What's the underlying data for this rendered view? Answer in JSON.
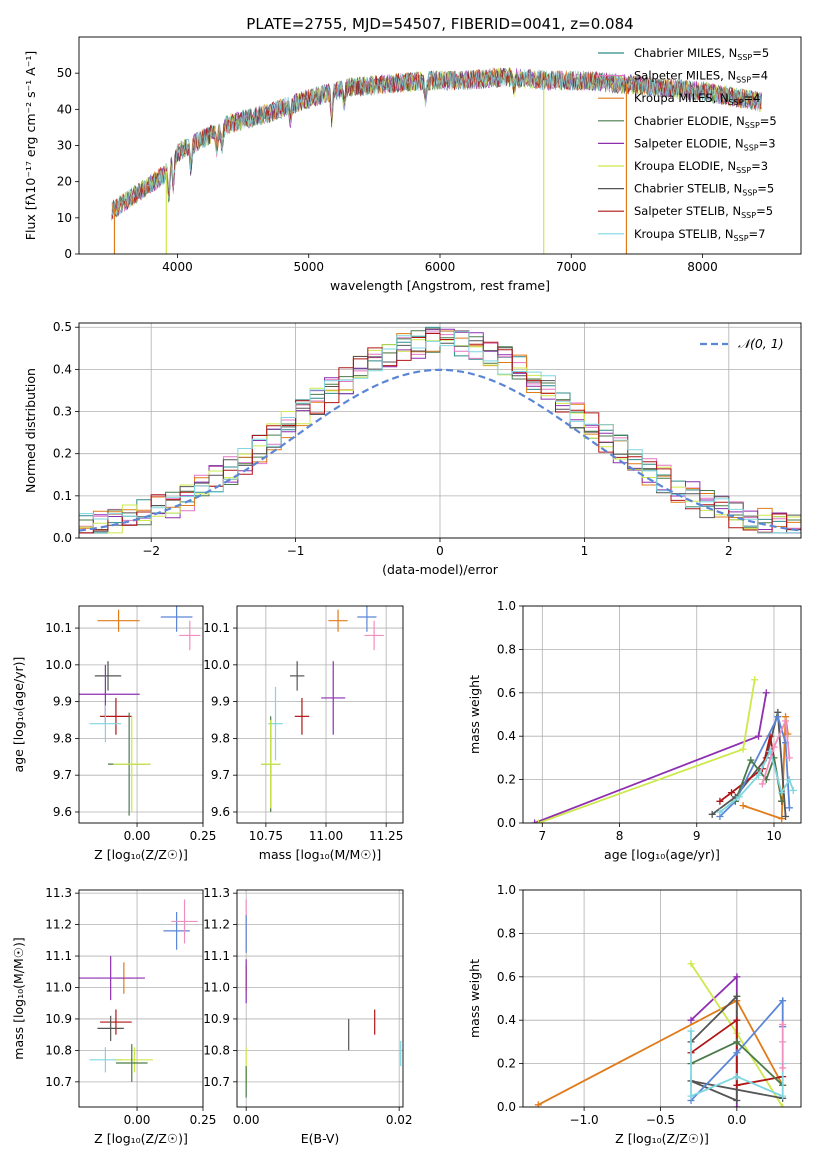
{
  "figure_title": "PLATE=2755, MJD=54507, FIBERID=0041, z=0.084",
  "series": [
    {
      "name": "Chabrier MILES, N",
      "sub": "SSP",
      "suffix": "=5",
      "color": "#2c8c8c"
    },
    {
      "name": "Salpeter MILES, N",
      "sub": "SSP",
      "suffix": "=4",
      "color": "#e377c2"
    },
    {
      "name": "Kroupa MILES, N",
      "sub": "SSP",
      "suffix": "=4",
      "color": "#e07b1a"
    },
    {
      "name": "Chabrier ELODIE, N",
      "sub": "SSP",
      "suffix": "=5",
      "color": "#4a7a4a"
    },
    {
      "name": "Salpeter ELODIE, N",
      "sub": "SSP",
      "suffix": "=3",
      "color": "#8e2fb0"
    },
    {
      "name": "Kroupa ELODIE, N",
      "sub": "SSP",
      "suffix": "=3",
      "color": "#cde84b"
    },
    {
      "name": "Chabrier STELIB, N",
      "sub": "SSP",
      "suffix": "=5",
      "color": "#555555"
    },
    {
      "name": "Salpeter STELIB, N",
      "sub": "SSP",
      "suffix": "=5",
      "color": "#b01515"
    },
    {
      "name": "Kroupa STELIB, N",
      "sub": "SSP",
      "suffix": "=7",
      "color": "#7fd6e0"
    }
  ],
  "extra_colors": {
    "blue": "#5b86d6",
    "pink": "#ef8fbf"
  },
  "chart_data": [
    {
      "id": "spectrum",
      "type": "line",
      "xlabel": "wavelength [Angstrom, rest frame]",
      "ylabel": "Flux [fλ10⁻¹⁷ erg cm⁻² s⁻¹ A⁻¹]",
      "xlim": [
        3250,
        8750
      ],
      "ylim": [
        0,
        60
      ],
      "xticks": [
        4000,
        5000,
        6000,
        7000,
        8000
      ],
      "yticks": [
        0,
        10,
        20,
        30,
        40,
        50
      ],
      "continuum": [
        [
          3500,
          12
        ],
        [
          3700,
          17
        ],
        [
          3900,
          22
        ],
        [
          4000,
          28
        ],
        [
          4200,
          32
        ],
        [
          4400,
          36
        ],
        [
          4700,
          39
        ],
        [
          5000,
          43
        ],
        [
          5300,
          46
        ],
        [
          5600,
          47
        ],
        [
          5900,
          48
        ],
        [
          6200,
          48
        ],
        [
          6500,
          49
        ],
        [
          6800,
          48
        ],
        [
          7100,
          48
        ],
        [
          7400,
          47
        ],
        [
          7700,
          46
        ],
        [
          8000,
          45
        ],
        [
          8300,
          43
        ],
        [
          8450,
          42
        ]
      ],
      "drops": [
        [
          3520,
          0
        ],
        [
          3915,
          0
        ],
        [
          6790,
          0
        ],
        [
          7420,
          0
        ]
      ]
    },
    {
      "id": "residuals",
      "type": "histogram",
      "xlabel": "(data-model)/error",
      "ylabel": "Normed distribution",
      "xlim": [
        -2.5,
        2.5
      ],
      "ylim": [
        0,
        0.51
      ],
      "xticks": [
        -2,
        -1,
        0,
        1,
        2
      ],
      "yticks": [
        0.0,
        0.1,
        0.2,
        0.3,
        0.4,
        0.5
      ],
      "reference_curve": "𝒩(0, 1)",
      "bins": {
        "start": -2.5,
        "width": 0.1,
        "count": 50
      }
    },
    {
      "id": "age-vs-Z",
      "type": "errorbar",
      "xlabel": "Z [log₁₀(Z/Z☉)]",
      "ylabel": "age  [log₁₀(age/yr)]",
      "xlim": [
        -0.22,
        0.25
      ],
      "ylim": [
        9.57,
        10.16
      ],
      "xticks": [
        0.0,
        0.25
      ],
      "yticks": [
        9.6,
        9.7,
        9.8,
        9.9,
        10.0,
        10.1
      ],
      "points": [
        {
          "x": -0.07,
          "y": 10.12,
          "ex": 0.08,
          "ey": 0.03,
          "c": "#e07b1a"
        },
        {
          "x": 0.15,
          "y": 10.13,
          "ex": 0.06,
          "ey": 0.04,
          "c": "#5b86d6"
        },
        {
          "x": 0.2,
          "y": 10.08,
          "ex": 0.04,
          "ey": 0.04,
          "c": "#ef8fbf"
        },
        {
          "x": -0.11,
          "y": 9.97,
          "ex": 0.05,
          "ey": 0.04,
          "c": "#555555"
        },
        {
          "x": -0.12,
          "y": 9.92,
          "ex": 0.13,
          "ey": 0.08,
          "c": "#8e2fb0"
        },
        {
          "x": -0.08,
          "y": 9.86,
          "ex": 0.06,
          "ey": 0.05,
          "c": "#b01515"
        },
        {
          "x": -0.12,
          "y": 9.84,
          "ex": 0.06,
          "ey": 0.05,
          "c": "#7fd6e0"
        },
        {
          "x": -0.03,
          "y": 9.73,
          "ex": 0.08,
          "ey": 0.14,
          "c": "#4a7a4a"
        },
        {
          "x": -0.02,
          "y": 9.73,
          "ex": 0.07,
          "ey": 0.13,
          "c": "#cde84b"
        }
      ]
    },
    {
      "id": "age-vs-mass",
      "type": "errorbar",
      "xlabel": "mass [log₁₀(M/M☉)]",
      "ylabel": "",
      "xlim": [
        10.63,
        11.32
      ],
      "ylim": [
        9.57,
        10.16
      ],
      "xticks": [
        10.75,
        11.0,
        11.25
      ],
      "yticks": [
        9.6,
        9.7,
        9.8,
        9.9,
        10.0,
        10.1
      ],
      "points": [
        {
          "x": 11.05,
          "y": 10.12,
          "ex": 0.04,
          "ey": 0.03,
          "c": "#e07b1a"
        },
        {
          "x": 11.17,
          "y": 10.13,
          "ex": 0.04,
          "ey": 0.04,
          "c": "#5b86d6"
        },
        {
          "x": 11.2,
          "y": 10.08,
          "ex": 0.04,
          "ey": 0.04,
          "c": "#ef8fbf"
        },
        {
          "x": 10.88,
          "y": 9.97,
          "ex": 0.03,
          "ey": 0.04,
          "c": "#555555"
        },
        {
          "x": 11.03,
          "y": 9.91,
          "ex": 0.05,
          "ey": 0.1,
          "c": "#8e2fb0"
        },
        {
          "x": 10.9,
          "y": 9.86,
          "ex": 0.03,
          "ey": 0.05,
          "c": "#b01515"
        },
        {
          "x": 10.79,
          "y": 9.84,
          "ex": 0.03,
          "ey": 0.1,
          "c": "#7fd6e0"
        },
        {
          "x": 10.77,
          "y": 9.73,
          "ex": 0.04,
          "ey": 0.13,
          "c": "#4a7a4a"
        },
        {
          "x": 10.77,
          "y": 9.73,
          "ex": 0.04,
          "ey": 0.12,
          "c": "#cde84b"
        }
      ]
    },
    {
      "id": "mass-vs-Z",
      "type": "errorbar",
      "xlabel": "Z [log₁₀(Z/Z☉)]",
      "ylabel": "mass [log₁₀(M/M☉)]",
      "xlim": [
        -0.22,
        0.25
      ],
      "ylim": [
        10.62,
        11.31
      ],
      "xticks": [
        0.0,
        0.25
      ],
      "yticks": [
        10.7,
        10.8,
        10.9,
        11.0,
        11.1,
        11.2,
        11.3
      ],
      "points": [
        {
          "x": 0.15,
          "y": 11.18,
          "ex": 0.05,
          "ey": 0.06,
          "c": "#5b86d6"
        },
        {
          "x": 0.18,
          "y": 11.21,
          "ex": 0.05,
          "ey": 0.07,
          "c": "#ef8fbf"
        },
        {
          "x": -0.05,
          "y": 11.03,
          "ex": 0.03,
          "ey": 0.05,
          "c": "#e07b1a"
        },
        {
          "x": -0.1,
          "y": 11.03,
          "ex": 0.13,
          "ey": 0.07,
          "c": "#8e2fb0"
        },
        {
          "x": -0.08,
          "y": 10.89,
          "ex": 0.06,
          "ey": 0.04,
          "c": "#b01515"
        },
        {
          "x": -0.1,
          "y": 10.87,
          "ex": 0.05,
          "ey": 0.04,
          "c": "#555555"
        },
        {
          "x": -0.12,
          "y": 10.77,
          "ex": 0.06,
          "ey": 0.04,
          "c": "#7fd6e0"
        },
        {
          "x": -0.01,
          "y": 10.77,
          "ex": 0.07,
          "ey": 0.04,
          "c": "#cde84b"
        },
        {
          "x": -0.02,
          "y": 10.76,
          "ex": 0.06,
          "ey": 0.06,
          "c": "#4a7a4a"
        }
      ]
    },
    {
      "id": "mass-vs-EBV",
      "type": "errorbar",
      "xlabel": "E(B-V)",
      "ylabel": "",
      "xlim": [
        -0.0012,
        0.0205
      ],
      "ylim": [
        10.62,
        11.31
      ],
      "xticks": [
        0.0,
        0.02
      ],
      "yticks": [
        10.7,
        10.8,
        10.9,
        11.0,
        11.1,
        11.2,
        11.3
      ],
      "points": [
        {
          "x": 0.0,
          "y": 11.2,
          "ex": 0,
          "ey": 0.08,
          "c": "#ef8fbf"
        },
        {
          "x": 0.0,
          "y": 11.17,
          "ex": 0,
          "ey": 0.06,
          "c": "#5b86d6"
        },
        {
          "x": 0.0,
          "y": 11.03,
          "ex": 0,
          "ey": 0.04,
          "c": "#e07b1a"
        },
        {
          "x": 0.0,
          "y": 11.02,
          "ex": 0,
          "ey": 0.07,
          "c": "#8e2fb0"
        },
        {
          "x": 0.0,
          "y": 10.75,
          "ex": 0,
          "ey": 0.06,
          "c": "#cde84b"
        },
        {
          "x": 0.0,
          "y": 10.7,
          "ex": 0,
          "ey": 0.05,
          "c": "#4a7a4a"
        },
        {
          "x": 0.0134,
          "y": 10.85,
          "ex": 0,
          "ey": 0.05,
          "c": "#555555"
        },
        {
          "x": 0.0168,
          "y": 10.89,
          "ex": 0,
          "ey": 0.04,
          "c": "#b01515"
        },
        {
          "x": 0.0202,
          "y": 10.79,
          "ex": 0,
          "ey": 0.04,
          "c": "#7fd6e0"
        }
      ]
    },
    {
      "id": "massweight-vs-age",
      "type": "line",
      "xlabel": "age  [log₁₀(age/yr)]",
      "ylabel": "mass weight",
      "xlim": [
        6.75,
        10.35
      ],
      "ylim": [
        0,
        1.0
      ],
      "xticks": [
        7,
        8,
        9,
        10
      ],
      "yticks": [
        0.0,
        0.2,
        0.4,
        0.6,
        0.8,
        1.0
      ],
      "series": [
        {
          "c": "#e07b1a",
          "pts": [
            [
              9.6,
              0.08
            ],
            [
              10.1,
              0.02
            ],
            [
              10.15,
              0.49
            ],
            [
              10.18,
              0.41
            ]
          ]
        },
        {
          "c": "#8e2fb0",
          "pts": [
            [
              6.9,
              0.0
            ],
            [
              9.8,
              0.4
            ],
            [
              9.9,
              0.6
            ]
          ]
        },
        {
          "c": "#cde84b",
          "pts": [
            [
              6.95,
              0.0
            ],
            [
              9.6,
              0.34
            ],
            [
              9.75,
              0.66
            ]
          ]
        },
        {
          "c": "#555555",
          "pts": [
            [
              9.2,
              0.04
            ],
            [
              9.5,
              0.12
            ],
            [
              9.9,
              0.3
            ],
            [
              10.05,
              0.51
            ],
            [
              10.15,
              0.03
            ]
          ]
        },
        {
          "c": "#b01515",
          "pts": [
            [
              9.3,
              0.1
            ],
            [
              9.45,
              0.14
            ],
            [
              9.85,
              0.25
            ],
            [
              9.95,
              0.4
            ],
            [
              10.1,
              0.1
            ]
          ]
        },
        {
          "c": "#5b86d6",
          "pts": [
            [
              9.3,
              0.03
            ],
            [
              9.5,
              0.1
            ],
            [
              10.05,
              0.49
            ],
            [
              10.15,
              0.37
            ],
            [
              10.2,
              0.07
            ]
          ]
        },
        {
          "c": "#4a7a4a",
          "pts": [
            [
              9.5,
              0.1
            ],
            [
              9.7,
              0.29
            ],
            [
              9.9,
              0.2
            ],
            [
              10.0,
              0.3
            ],
            [
              10.1,
              0.1
            ]
          ]
        },
        {
          "c": "#7fd6e0",
          "pts": [
            [
              9.3,
              0.05
            ],
            [
              9.55,
              0.12
            ],
            [
              9.8,
              0.22
            ],
            [
              9.95,
              0.33
            ],
            [
              10.1,
              0.14
            ],
            [
              10.2,
              0.2
            ],
            [
              10.25,
              0.15
            ]
          ]
        },
        {
          "c": "#ef8fbf",
          "pts": [
            [
              9.85,
              0.18
            ],
            [
              10.0,
              0.35
            ],
            [
              10.15,
              0.47
            ],
            [
              10.2,
              0.3
            ]
          ]
        }
      ]
    },
    {
      "id": "massweight-vs-Z",
      "type": "line",
      "xlabel": "Z [log₁₀(Z/Z☉)]",
      "ylabel": "mass weight",
      "xlim": [
        -1.4,
        0.42
      ],
      "ylim": [
        0,
        1.0
      ],
      "xticks": [
        -1.0,
        -0.5,
        0.0
      ],
      "yticks": [
        0.0,
        0.2,
        0.4,
        0.6,
        0.8,
        1.0
      ],
      "series": [
        {
          "c": "#e07b1a",
          "pts": [
            [
              -1.3,
              0.01
            ],
            [
              0.0,
              0.49
            ],
            [
              0.3,
              0.1
            ]
          ]
        },
        {
          "c": "#8e2fb0",
          "pts": [
            [
              -0.3,
              0.4
            ],
            [
              0.0,
              0.6
            ],
            [
              0.0,
              0.0
            ]
          ]
        },
        {
          "c": "#cde84b",
          "pts": [
            [
              -0.3,
              0.66
            ],
            [
              0.0,
              0.34
            ],
            [
              0.3,
              0.0
            ]
          ]
        },
        {
          "c": "#555555",
          "pts": [
            [
              -0.3,
              0.3
            ],
            [
              0.0,
              0.51
            ],
            [
              0.0,
              0.03
            ],
            [
              -0.3,
              0.12
            ],
            [
              0.3,
              0.04
            ]
          ]
        },
        {
          "c": "#b01515",
          "pts": [
            [
              -0.3,
              0.25
            ],
            [
              0.0,
              0.4
            ],
            [
              0.0,
              0.1
            ],
            [
              0.3,
              0.14
            ]
          ]
        },
        {
          "c": "#5b86d6",
          "pts": [
            [
              -0.3,
              0.03
            ],
            [
              0.0,
              0.25
            ],
            [
              0.3,
              0.49
            ],
            [
              0.3,
              0.37
            ]
          ]
        },
        {
          "c": "#4a7a4a",
          "pts": [
            [
              -0.3,
              0.2
            ],
            [
              0.0,
              0.3
            ],
            [
              0.3,
              0.1
            ]
          ]
        },
        {
          "c": "#7fd6e0",
          "pts": [
            [
              -0.3,
              0.35
            ],
            [
              -0.3,
              0.05
            ],
            [
              0.0,
              0.14
            ],
            [
              0.3,
              0.05
            ],
            [
              0.3,
              0.2
            ]
          ]
        },
        {
          "c": "#ef8fbf",
          "pts": [
            [
              0.3,
              0.38
            ],
            [
              0.3,
              0.3
            ],
            [
              0.3,
              0.18
            ]
          ]
        }
      ]
    }
  ]
}
